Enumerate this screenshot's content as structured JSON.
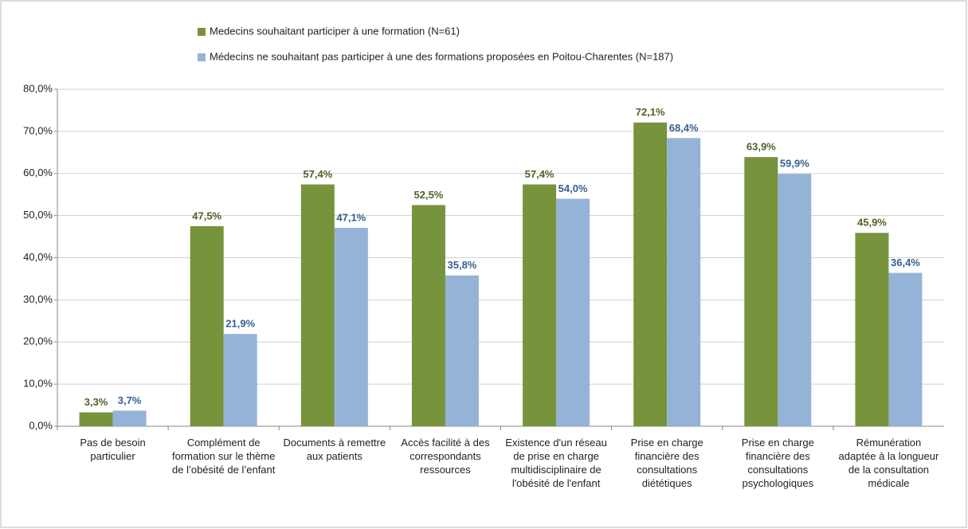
{
  "chart_data": {
    "type": "bar",
    "categories": [
      "Pas de besoin particulier",
      "Complément de formation sur le thème de l’obésité de l’enfant",
      "Documents à remettre aux patients",
      "Accès facilité à des correspondants ressources",
      "Existence d'un réseau de prise en charge multidisciplinaire de l'obésité de l'enfant",
      "Prise en charge financière des consultations diététiques",
      "Prise en charge financière des consultations psychologiques",
      "Rémunération adaptée à la longueur de la consultation médicale"
    ],
    "series": [
      {
        "name": "Medecins souhaitant participer à une formation (N=61)",
        "color": "#77933c",
        "label_color": "#4f6228",
        "values": [
          3.3,
          47.5,
          57.4,
          52.5,
          57.4,
          72.1,
          63.9,
          45.9
        ],
        "value_labels": [
          "3,3%",
          "47,5%",
          "57,4%",
          "52,5%",
          "57,4%",
          "72,1%",
          "63,9%",
          "45,9%"
        ]
      },
      {
        "name": "Médecins ne souhaitant pas participer à une des formations proposées en Poitou-Charentes  (N=187)",
        "color": "#95b3d7",
        "label_color": "#366092",
        "values": [
          3.7,
          21.9,
          47.1,
          35.8,
          54.0,
          68.4,
          59.9,
          36.4
        ],
        "value_labels": [
          "3,7%",
          "21,9%",
          "47,1%",
          "35,8%",
          "54,0%",
          "68,4%",
          "59,9%",
          "36,4%"
        ]
      }
    ],
    "ylim": [
      0,
      80
    ],
    "yticks": [
      {
        "value": 0,
        "label": "0,0%"
      },
      {
        "value": 10,
        "label": "10,0%"
      },
      {
        "value": 20,
        "label": "20,0%"
      },
      {
        "value": 30,
        "label": "30,0%"
      },
      {
        "value": 40,
        "label": "40,0%"
      },
      {
        "value": 50,
        "label": "50,0%"
      },
      {
        "value": 60,
        "label": "60,0%"
      },
      {
        "value": 70,
        "label": "70,0%"
      },
      {
        "value": 80,
        "label": "80,0%"
      }
    ],
    "grid": true
  }
}
